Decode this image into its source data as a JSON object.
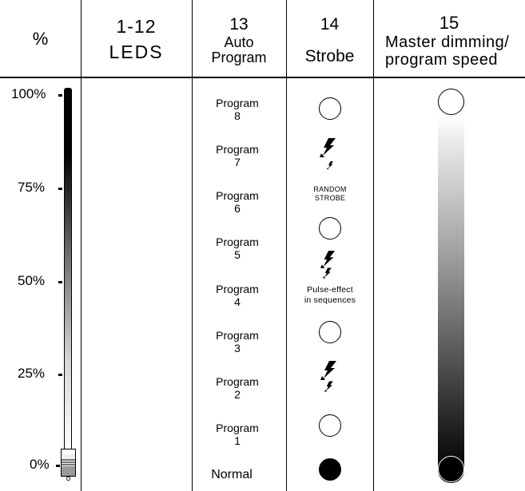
{
  "headers": {
    "percent": "%",
    "leds": {
      "number": "1-12",
      "label": "LEDS"
    },
    "auto_program": {
      "number": "13",
      "line1": "Auto",
      "line2": "Program"
    },
    "strobe": {
      "number": "14",
      "label": "Strobe"
    },
    "master": {
      "number": "15",
      "line1": "Master dimming/",
      "line2": "program speed"
    }
  },
  "percent_scale": [
    "100%",
    "75%",
    "50%",
    "25%",
    "0%"
  ],
  "programs": [
    {
      "label": "Program",
      "num": "8"
    },
    {
      "label": "Program",
      "num": "7"
    },
    {
      "label": "Program",
      "num": "6"
    },
    {
      "label": "Program",
      "num": "5"
    },
    {
      "label": "Program",
      "num": "4"
    },
    {
      "label": "Program",
      "num": "3"
    },
    {
      "label": "Program",
      "num": "2"
    },
    {
      "label": "Program",
      "num": "1"
    }
  ],
  "normal_label": "Normal",
  "strobe_notes": {
    "random_line1": "RANDOM",
    "random_line2": "STROBE",
    "pulse_line1": "Pulse-effect",
    "pulse_line2": "in sequences"
  },
  "icons": [
    "lightning-bolt-icon",
    "circle-icon",
    "filled-circle-icon",
    "fader-knob-icon"
  ],
  "colors": {
    "ink": "#000000",
    "paper": "#ffffff"
  }
}
